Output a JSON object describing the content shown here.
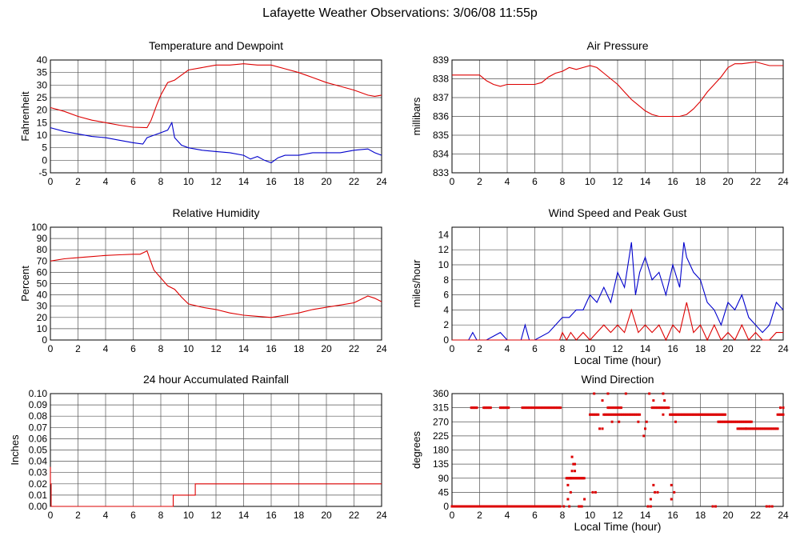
{
  "page_title": "Lafayette Weather Observations: 3/06/08 11:55p",
  "colors": {
    "red": "#dd0000",
    "blue": "#0000cc",
    "grid": "#555555"
  },
  "chart_data": [
    {
      "id": "temp",
      "type": "line",
      "title": "Temperature and Dewpoint",
      "ylabel": "Fahrenheit",
      "xlabel": "",
      "xlim": [
        0,
        24
      ],
      "ylim": [
        -5,
        40
      ],
      "xticks": [
        0,
        2,
        4,
        6,
        8,
        10,
        12,
        14,
        16,
        18,
        20,
        22,
        24
      ],
      "yticks": [
        -5,
        0,
        5,
        10,
        15,
        20,
        25,
        30,
        35,
        40
      ],
      "grid": true,
      "series": [
        {
          "color": "red",
          "x": [
            0,
            1,
            2,
            3,
            4,
            5,
            6,
            7,
            7.3,
            7.7,
            8,
            8.5,
            9,
            9.5,
            10,
            11,
            12,
            13,
            14,
            15,
            16,
            17,
            18,
            19,
            20,
            21,
            22,
            23,
            23.5,
            24
          ],
          "y": [
            21,
            19.5,
            17.5,
            16,
            15,
            14,
            13.2,
            13,
            16,
            22,
            26,
            31,
            32,
            34,
            36,
            37,
            38,
            38,
            38.5,
            38,
            38,
            36.5,
            35,
            33,
            31,
            29.5,
            28,
            26,
            25.5,
            26
          ]
        },
        {
          "color": "blue",
          "x": [
            0,
            1,
            2,
            3,
            4,
            5,
            6,
            6.7,
            7,
            7.5,
            8,
            8.5,
            8.8,
            9,
            9.5,
            10,
            11,
            12,
            13,
            14,
            14.5,
            15,
            15.5,
            16,
            16.5,
            17,
            18,
            19,
            20,
            21,
            22,
            23,
            23.5,
            24
          ],
          "y": [
            13,
            11.5,
            10.5,
            9.5,
            9,
            8,
            7,
            6.5,
            9,
            10,
            11,
            12,
            15,
            9,
            6,
            5,
            4,
            3.5,
            3,
            2,
            0.5,
            1.5,
            0,
            -1,
            1,
            2,
            2,
            3,
            3,
            3,
            4,
            4.5,
            3,
            2
          ]
        }
      ]
    },
    {
      "id": "pressure",
      "type": "line",
      "title": "Air Pressure",
      "ylabel": "millibars",
      "xlabel": "",
      "xlim": [
        0,
        24
      ],
      "ylim": [
        833,
        839
      ],
      "xticks": [
        0,
        2,
        4,
        6,
        8,
        10,
        12,
        14,
        16,
        18,
        20,
        22,
        24
      ],
      "yticks": [
        833,
        834,
        835,
        836,
        837,
        838,
        839
      ],
      "grid": true,
      "series": [
        {
          "color": "red",
          "x": [
            0,
            1,
            2,
            2.5,
            3,
            3.5,
            4,
            5,
            6,
            6.5,
            7,
            7.5,
            8,
            8.5,
            9,
            9.5,
            10,
            10.5,
            11,
            11.5,
            12,
            12.5,
            13,
            13.5,
            14,
            14.5,
            15,
            15.5,
            16,
            16.5,
            17,
            17.5,
            18,
            18.5,
            19,
            19.5,
            20,
            20.5,
            21,
            22,
            23,
            24
          ],
          "y": [
            838.2,
            838.2,
            838.2,
            837.9,
            837.7,
            837.6,
            837.7,
            837.7,
            837.7,
            837.8,
            838.1,
            838.3,
            838.4,
            838.6,
            838.5,
            838.6,
            838.7,
            838.6,
            838.3,
            838,
            837.7,
            837.3,
            836.9,
            836.6,
            836.3,
            836.1,
            836,
            836,
            836,
            836,
            836.1,
            836.4,
            836.8,
            837.3,
            837.7,
            838.1,
            838.6,
            838.8,
            838.8,
            838.9,
            838.7,
            838.7
          ]
        }
      ]
    },
    {
      "id": "humidity",
      "type": "line",
      "title": "Relative Humidity",
      "ylabel": "Percent",
      "xlabel": "",
      "xlim": [
        0,
        24
      ],
      "ylim": [
        0,
        100
      ],
      "xticks": [
        0,
        2,
        4,
        6,
        8,
        10,
        12,
        14,
        16,
        18,
        20,
        22,
        24
      ],
      "yticks": [
        0,
        10,
        20,
        30,
        40,
        50,
        60,
        70,
        80,
        90,
        100
      ],
      "grid": true,
      "series": [
        {
          "color": "red",
          "x": [
            0,
            1,
            2,
            3,
            4,
            5,
            6,
            6.5,
            7,
            7.2,
            7.5,
            8,
            8.5,
            9,
            9.5,
            10,
            11,
            12,
            13,
            14,
            15,
            16,
            17,
            18,
            19,
            20,
            21,
            22,
            23,
            23.5,
            24
          ],
          "y": [
            70,
            72,
            73,
            74,
            75,
            75.5,
            76,
            76,
            79,
            72,
            62,
            55,
            48,
            45,
            38,
            32,
            29,
            27,
            24,
            22,
            21,
            20,
            22,
            24,
            27,
            29,
            31,
            33,
            39,
            37,
            34
          ]
        }
      ]
    },
    {
      "id": "wind",
      "type": "line",
      "title": "Wind Speed and Peak Gust",
      "ylabel": "miles/hour",
      "xlabel": "Local Time (hour)",
      "xlim": [
        0,
        24
      ],
      "ylim": [
        0,
        15
      ],
      "xticks": [
        0,
        2,
        4,
        6,
        8,
        10,
        12,
        14,
        16,
        18,
        20,
        22,
        24
      ],
      "yticks": [
        0,
        2,
        4,
        6,
        8,
        10,
        12,
        14
      ],
      "grid": true,
      "series": [
        {
          "color": "blue",
          "x": [
            0,
            1.2,
            1.5,
            1.8,
            2.5,
            3.5,
            4,
            5,
            5.3,
            5.6,
            6,
            7,
            7.5,
            8,
            8.5,
            9,
            9.5,
            10,
            10.5,
            11,
            11.5,
            12,
            12.5,
            13,
            13.3,
            13.6,
            14,
            14.5,
            15,
            15.5,
            16,
            16.5,
            16.8,
            17,
            17.5,
            18,
            18.5,
            19,
            19.5,
            20,
            20.5,
            21,
            21.5,
            22,
            22.5,
            23,
            23.5,
            24
          ],
          "y": [
            0,
            0,
            1,
            0,
            0,
            1,
            0,
            0,
            2,
            0,
            0,
            1,
            2,
            3,
            3,
            4,
            4,
            6,
            5,
            7,
            5,
            9,
            7,
            13,
            6,
            9,
            11,
            8,
            9,
            6,
            10,
            7,
            13,
            11,
            9,
            8,
            5,
            4,
            2,
            5,
            4,
            6,
            3,
            2,
            1,
            2,
            5,
            4
          ]
        },
        {
          "color": "red",
          "x": [
            0,
            7.8,
            8,
            8.3,
            8.6,
            9,
            9.5,
            10,
            10.5,
            11,
            11.5,
            12,
            12.5,
            13,
            13.5,
            14,
            14.5,
            15,
            15.5,
            16,
            16.5,
            17,
            17.5,
            18,
            18.5,
            19,
            19.5,
            20,
            20.5,
            21,
            21.5,
            22,
            22.5,
            23,
            23.5,
            24
          ],
          "y": [
            0,
            0,
            1,
            0,
            1,
            0,
            1,
            0,
            1,
            2,
            1,
            2,
            1,
            4,
            1,
            2,
            1,
            2,
            0,
            2,
            1,
            5,
            1,
            2,
            0,
            2,
            0,
            1,
            0,
            2,
            0,
            1,
            0,
            0,
            1,
            1
          ]
        }
      ]
    },
    {
      "id": "rain",
      "type": "line",
      "title": "24 hour Accumulated Rainfall",
      "ylabel": "Inches",
      "xlabel": "",
      "xlim": [
        0,
        24
      ],
      "ylim": [
        0,
        0.1
      ],
      "xticks": [
        0,
        2,
        4,
        6,
        8,
        10,
        12,
        14,
        16,
        18,
        20,
        22,
        24
      ],
      "yticks": [
        "0.00",
        "0.01",
        "0.02",
        "0.03",
        "0.04",
        "0.05",
        "0.06",
        "0.07",
        "0.08",
        "0.09",
        "0.10"
      ],
      "grid": true,
      "series": [
        {
          "color": "red",
          "x": [
            0,
            0,
            0.05,
            0.05,
            8.9,
            8.9,
            10.5,
            10.5,
            24
          ],
          "y": [
            0.035,
            0.02,
            0.02,
            0,
            0,
            0.01,
            0.01,
            0.02,
            0.02
          ]
        }
      ]
    },
    {
      "id": "direction",
      "type": "scatter",
      "title": "Wind Direction",
      "ylabel": "degrees",
      "xlabel": "Local Time (hour)",
      "xlim": [
        0,
        24
      ],
      "ylim": [
        0,
        360
      ],
      "xticks": [
        0,
        2,
        4,
        6,
        8,
        10,
        12,
        14,
        16,
        18,
        20,
        22,
        24
      ],
      "yticks": [
        0,
        45,
        90,
        135,
        180,
        225,
        270,
        315,
        360
      ],
      "grid": true,
      "series": [
        {
          "color": "red",
          "bands": [
            {
              "x0": 0,
              "x1": 7.9,
              "y": 0,
              "step": 0.07
            },
            {
              "x0": 1.4,
              "x1": 1.8,
              "y": 315,
              "step": 0.1
            },
            {
              "x0": 2.3,
              "x1": 2.8,
              "y": 315,
              "step": 0.1
            },
            {
              "x0": 3.5,
              "x1": 4.1,
              "y": 315,
              "step": 0.1
            },
            {
              "x0": 5.1,
              "x1": 7.9,
              "y": 315,
              "step": 0.12
            },
            {
              "x0": 8.3,
              "x1": 9.6,
              "y": 90,
              "step": 0.08
            },
            {
              "x0": 10,
              "x1": 10.6,
              "y": 293,
              "step": 0.1
            },
            {
              "x0": 11,
              "x1": 13.6,
              "y": 293,
              "step": 0.1
            },
            {
              "x0": 11.3,
              "x1": 12.3,
              "y": 315,
              "step": 0.12
            },
            {
              "x0": 14.5,
              "x1": 15.8,
              "y": 315,
              "step": 0.12
            },
            {
              "x0": 15.8,
              "x1": 19.8,
              "y": 293,
              "step": 0.08
            },
            {
              "x0": 19.3,
              "x1": 21.7,
              "y": 270,
              "step": 0.1
            },
            {
              "x0": 20.7,
              "x1": 23.6,
              "y": 248,
              "step": 0.1
            },
            {
              "x0": 23.6,
              "x1": 24,
              "y": 293,
              "step": 0.1
            }
          ],
          "points": [
            [
              8.1,
              0
            ],
            [
              8.5,
              0
            ],
            [
              9.2,
              0
            ],
            [
              9.3,
              0
            ],
            [
              9.4,
              0
            ],
            [
              8.4,
              23
            ],
            [
              8.6,
              45
            ],
            [
              8.4,
              68
            ],
            [
              8.6,
              90
            ],
            [
              8.7,
              113
            ],
            [
              8.9,
              113
            ],
            [
              8.8,
              135
            ],
            [
              8.7,
              158
            ],
            [
              8.9,
              135
            ],
            [
              9.6,
              23
            ],
            [
              10.2,
              45
            ],
            [
              10.4,
              45
            ],
            [
              10.3,
              360
            ],
            [
              10.9,
              338
            ],
            [
              11.3,
              360
            ],
            [
              12.6,
              360
            ],
            [
              10.7,
              248
            ],
            [
              10.9,
              248
            ],
            [
              11.6,
              270
            ],
            [
              12.1,
              270
            ],
            [
              13.5,
              270
            ],
            [
              14.1,
              270
            ],
            [
              14,
              248
            ],
            [
              13.9,
              225
            ],
            [
              14.3,
              360
            ],
            [
              14.6,
              338
            ],
            [
              15.4,
              338
            ],
            [
              15.3,
              360
            ],
            [
              14.6,
              68
            ],
            [
              14.7,
              45
            ],
            [
              14.4,
              23
            ],
            [
              14.2,
              0
            ],
            [
              14.4,
              0
            ],
            [
              15.9,
              23
            ],
            [
              15.9,
              68
            ],
            [
              14.9,
              45
            ],
            [
              16.1,
              45
            ],
            [
              15.3,
              293
            ],
            [
              16.2,
              270
            ],
            [
              18.9,
              0
            ],
            [
              19.1,
              0
            ],
            [
              22.8,
              0
            ],
            [
              23,
              0
            ],
            [
              23.2,
              0
            ],
            [
              24,
              315
            ],
            [
              23.8,
              315
            ],
            [
              21.3,
              248
            ]
          ]
        }
      ]
    }
  ]
}
